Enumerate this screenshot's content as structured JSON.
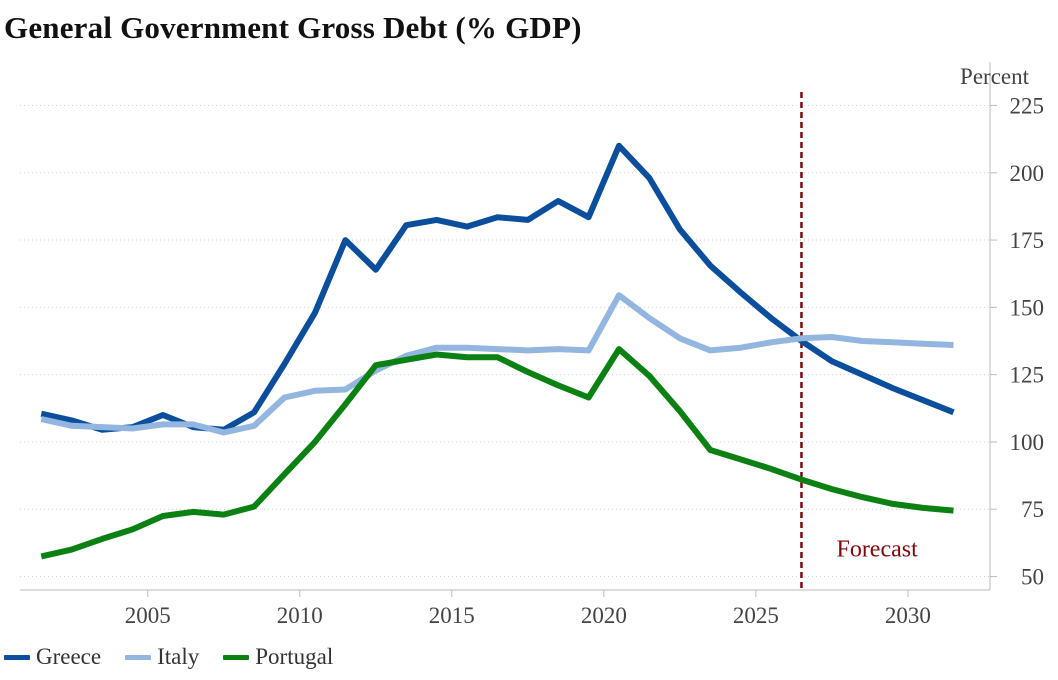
{
  "chart_data": {
    "type": "line",
    "title": "General Government Gross Debt (% GDP)",
    "ylabel": "Percent",
    "xlabel": "",
    "ylim": [
      45,
      230
    ],
    "xlim": [
      2000.8,
      2032.7
    ],
    "yticks": [
      50,
      75,
      100,
      125,
      150,
      175,
      200,
      225
    ],
    "xticks": [
      2005,
      2010,
      2015,
      2020,
      2025,
      2030
    ],
    "grid": "horizontal dotted",
    "legend_position": "bottom-left",
    "forecast_start": 2026.5,
    "annotation": "Forecast",
    "series": [
      {
        "name": "Greece",
        "color": "#0b4f9c",
        "x": [
          2001.5,
          2002.5,
          2003.5,
          2004.5,
          2005.5,
          2006.5,
          2007.5,
          2008.5,
          2009.5,
          2010.5,
          2011.5,
          2012.5,
          2013.5,
          2014.5,
          2015.5,
          2016.5,
          2017.5,
          2018.5,
          2019.5,
          2020.5,
          2021.5,
          2022.5,
          2023.5,
          2024.5,
          2025.5,
          2026.5,
          2027.5,
          2028.5,
          2029.5,
          2030.5,
          2031.5
        ],
        "values": [
          110.5,
          108,
          104.5,
          105.5,
          110,
          105.5,
          104.5,
          111,
          129,
          148,
          175,
          164,
          180.5,
          182.5,
          180,
          183.5,
          182.5,
          189.5,
          183.5,
          210,
          198,
          179,
          165.5,
          155.5,
          146,
          137.5,
          130,
          125,
          120,
          115.5,
          111
        ]
      },
      {
        "name": "Italy",
        "color": "#93b6e0",
        "x": [
          2001.5,
          2002.5,
          2003.5,
          2004.5,
          2005.5,
          2006.5,
          2007.5,
          2008.5,
          2009.5,
          2010.5,
          2011.5,
          2012.5,
          2013.5,
          2014.5,
          2015.5,
          2016.5,
          2017.5,
          2018.5,
          2019.5,
          2020.5,
          2021.5,
          2022.5,
          2023.5,
          2024.5,
          2025.5,
          2026.5,
          2027.5,
          2028.5,
          2029.5,
          2030.5,
          2031.5
        ],
        "values": [
          108.5,
          106,
          105.5,
          105,
          106.5,
          106.5,
          103.5,
          106,
          116.5,
          119,
          119.5,
          126.5,
          132,
          135,
          135,
          134.5,
          134,
          134.5,
          134,
          154.5,
          146,
          138.5,
          134,
          135,
          137,
          138.5,
          139,
          137.5,
          137,
          136.5,
          136
        ]
      },
      {
        "name": "Portugal",
        "color": "#0b8113",
        "x": [
          2001.5,
          2002.5,
          2003.5,
          2004.5,
          2005.5,
          2006.5,
          2007.5,
          2008.5,
          2009.5,
          2010.5,
          2011.5,
          2012.5,
          2013.5,
          2014.5,
          2015.5,
          2016.5,
          2017.5,
          2018.5,
          2019.5,
          2020.5,
          2021.5,
          2022.5,
          2023.5,
          2024.5,
          2025.5,
          2026.5,
          2027.5,
          2028.5,
          2029.5,
          2030.5,
          2031.5
        ],
        "values": [
          57.5,
          60,
          64,
          67.5,
          72.5,
          74,
          73,
          76,
          88,
          100,
          114,
          128.5,
          130.5,
          132.5,
          131.5,
          131.5,
          126,
          121,
          116.5,
          134.5,
          124.5,
          111.5,
          97,
          93.5,
          90,
          86,
          82.5,
          79.5,
          77,
          75.5,
          74.5
        ]
      }
    ]
  },
  "legend": {
    "items": [
      {
        "label": "Greece",
        "color": "#0b4f9c"
      },
      {
        "label": "Italy",
        "color": "#93b6e0"
      },
      {
        "label": "Portugal",
        "color": "#0b8113"
      }
    ]
  },
  "colors": {
    "forecast_line": "#7a0a0a",
    "grid": "#cfcfcf",
    "axis": "#bdbdbd"
  }
}
